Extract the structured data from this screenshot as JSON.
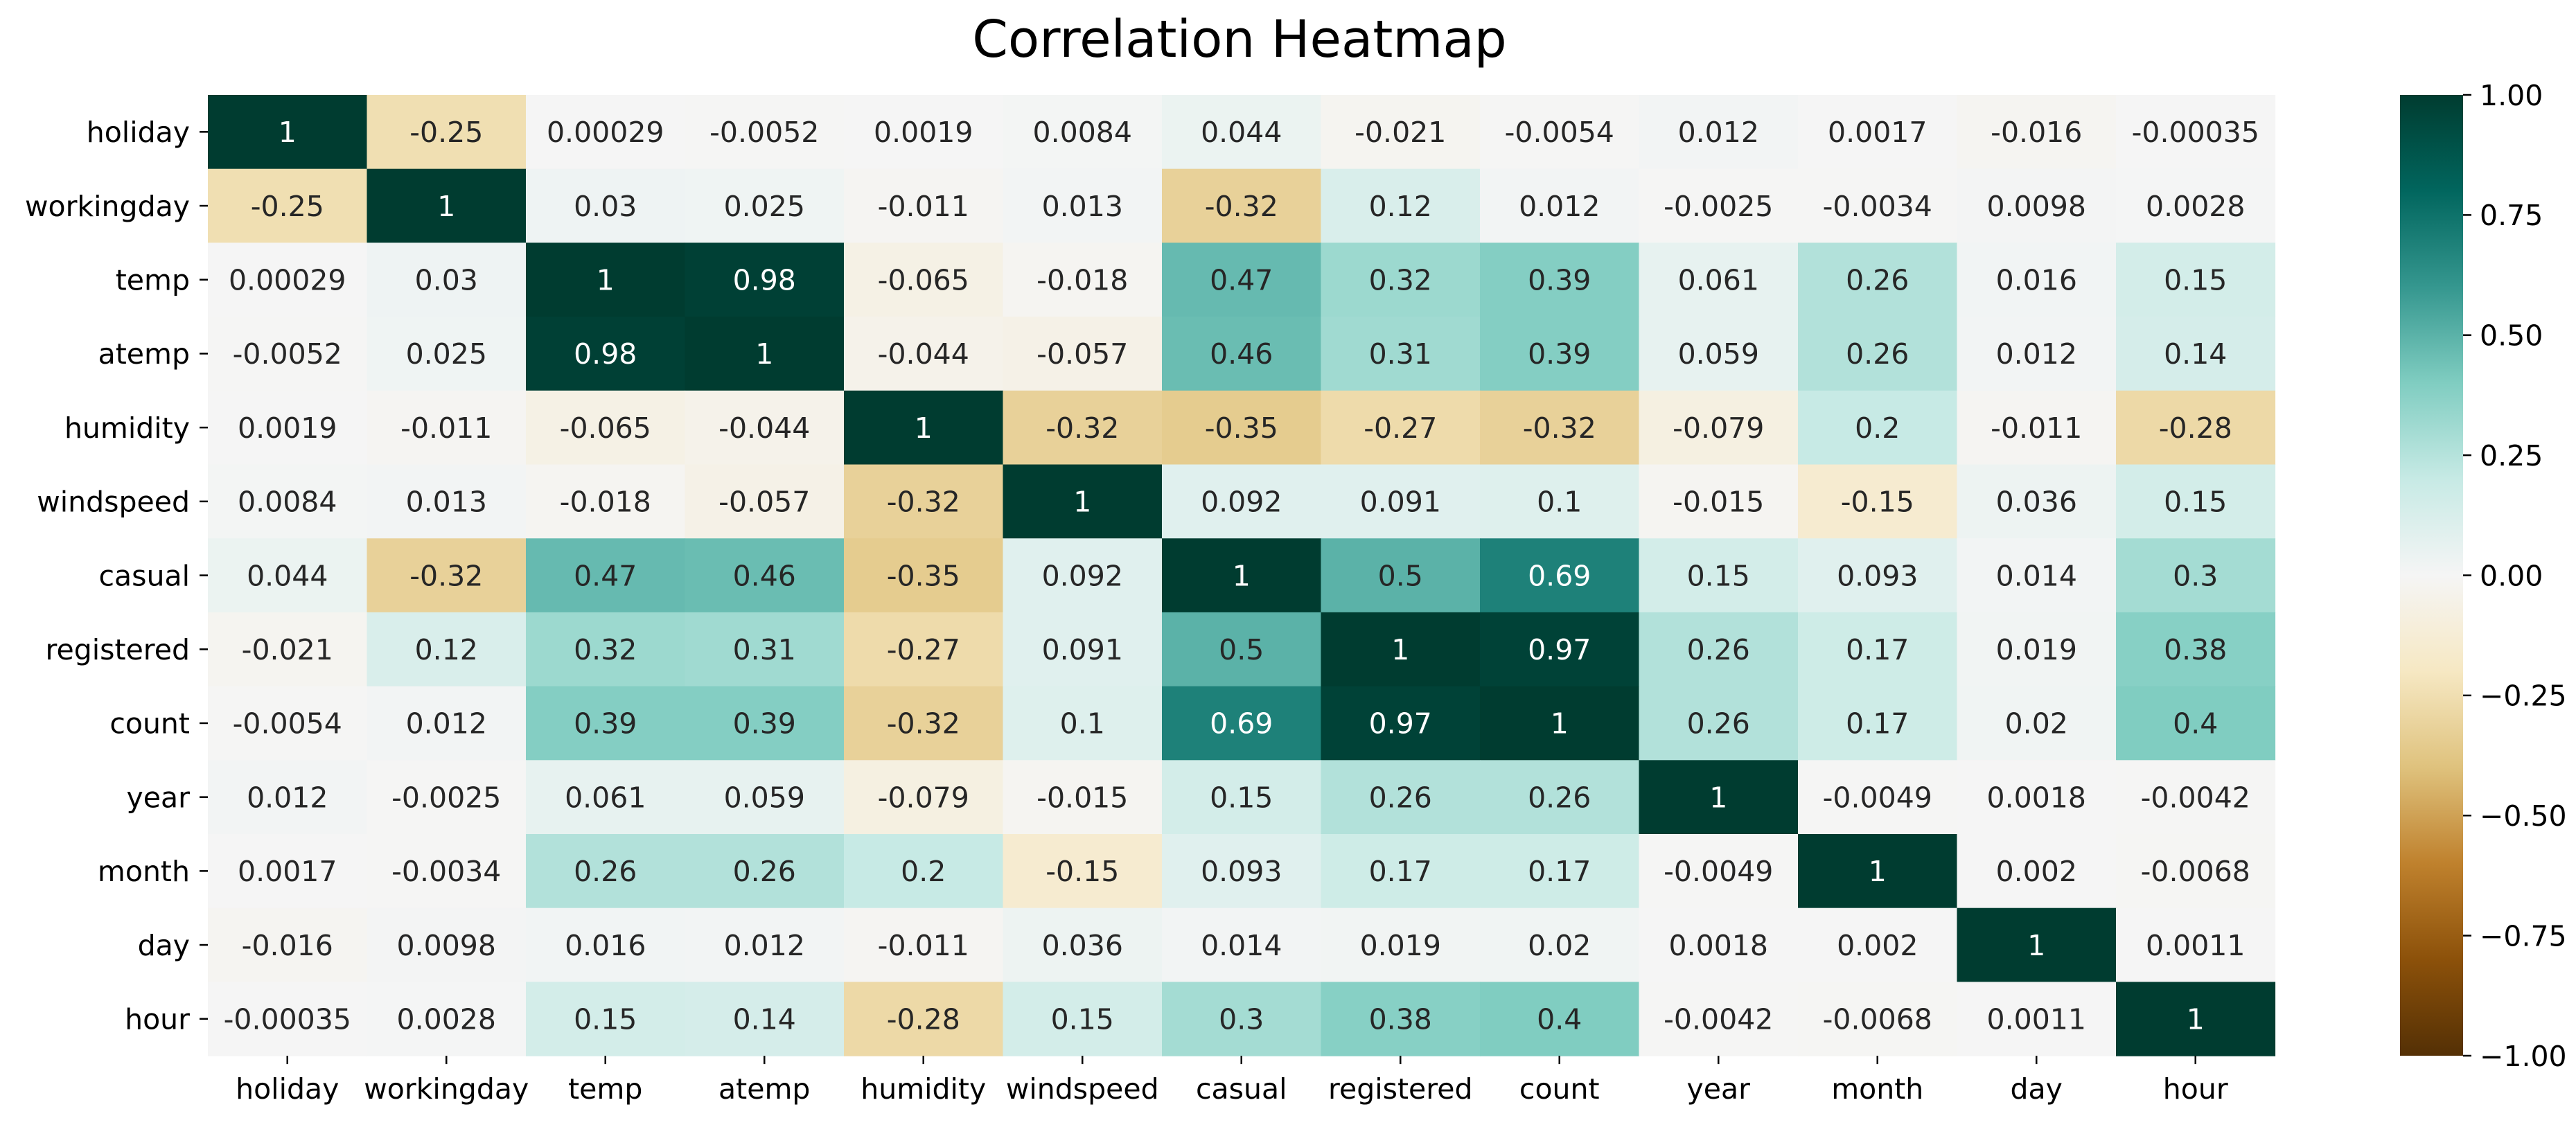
{
  "chart_data": {
    "type": "heatmap",
    "title": "Correlation Heatmap",
    "labels": [
      "holiday",
      "workingday",
      "temp",
      "atemp",
      "humidity",
      "windspeed",
      "casual",
      "registered",
      "count",
      "year",
      "month",
      "day",
      "hour"
    ],
    "matrix": [
      [
        1,
        -0.25,
        0.00029,
        -0.0052,
        0.0019,
        0.0084,
        0.044,
        -0.021,
        -0.0054,
        0.012,
        0.0017,
        -0.016,
        -0.00035
      ],
      [
        -0.25,
        1,
        0.03,
        0.025,
        -0.011,
        0.013,
        -0.32,
        0.12,
        0.012,
        -0.0025,
        -0.0034,
        0.0098,
        0.0028
      ],
      [
        0.00029,
        0.03,
        1,
        0.98,
        -0.065,
        -0.018,
        0.47,
        0.32,
        0.39,
        0.061,
        0.26,
        0.016,
        0.15
      ],
      [
        -0.0052,
        0.025,
        0.98,
        1,
        -0.044,
        -0.057,
        0.46,
        0.31,
        0.39,
        0.059,
        0.26,
        0.012,
        0.14
      ],
      [
        0.0019,
        -0.011,
        -0.065,
        -0.044,
        1,
        -0.32,
        -0.35,
        -0.27,
        -0.32,
        -0.079,
        0.2,
        -0.011,
        -0.28
      ],
      [
        0.0084,
        0.013,
        -0.018,
        -0.057,
        -0.32,
        1,
        0.092,
        0.091,
        0.1,
        -0.015,
        -0.15,
        0.036,
        0.15
      ],
      [
        0.044,
        -0.32,
        0.47,
        0.46,
        -0.35,
        0.092,
        1,
        0.5,
        0.69,
        0.15,
        0.093,
        0.014,
        0.3
      ],
      [
        -0.021,
        0.12,
        0.32,
        0.31,
        -0.27,
        0.091,
        0.5,
        1,
        0.97,
        0.26,
        0.17,
        0.019,
        0.38
      ],
      [
        -0.0054,
        0.012,
        0.39,
        0.39,
        -0.32,
        0.1,
        0.69,
        0.97,
        1,
        0.26,
        0.17,
        0.02,
        0.4
      ],
      [
        0.012,
        -0.0025,
        0.061,
        0.059,
        -0.079,
        -0.015,
        0.15,
        0.26,
        0.26,
        1,
        -0.0049,
        0.0018,
        -0.0042
      ],
      [
        0.0017,
        -0.0034,
        0.26,
        0.26,
        0.2,
        -0.15,
        0.093,
        0.17,
        0.17,
        -0.0049,
        1,
        0.002,
        -0.0068
      ],
      [
        -0.016,
        0.0098,
        0.016,
        0.012,
        -0.011,
        0.036,
        0.014,
        0.019,
        0.02,
        0.0018,
        0.002,
        1,
        0.0011
      ],
      [
        -0.00035,
        0.0028,
        0.15,
        0.14,
        -0.28,
        0.15,
        0.3,
        0.38,
        0.4,
        -0.0042,
        -0.0068,
        0.0011,
        1
      ]
    ],
    "vmin": -1,
    "vmax": 1,
    "colormap": "BrBG",
    "colorbar_ticks": [
      "1.00",
      "0.75",
      "0.50",
      "0.25",
      "0.00",
      "−0.25",
      "−0.50",
      "−0.75",
      "−1.00"
    ],
    "colorbar_tick_values": [
      1,
      0.75,
      0.5,
      0.25,
      0,
      -0.25,
      -0.5,
      -0.75,
      -1
    ],
    "annotated": true
  },
  "colors": {
    "cmap_stops": [
      "#543005",
      "#8c510a",
      "#bf812d",
      "#dfc27d",
      "#f6e8c3",
      "#f5f5f5",
      "#c7eae5",
      "#80cdc1",
      "#35978f",
      "#01665e",
      "#003c30"
    ],
    "text_dark": "#262626",
    "text_light": "#ffffff",
    "axis": "#000000"
  }
}
